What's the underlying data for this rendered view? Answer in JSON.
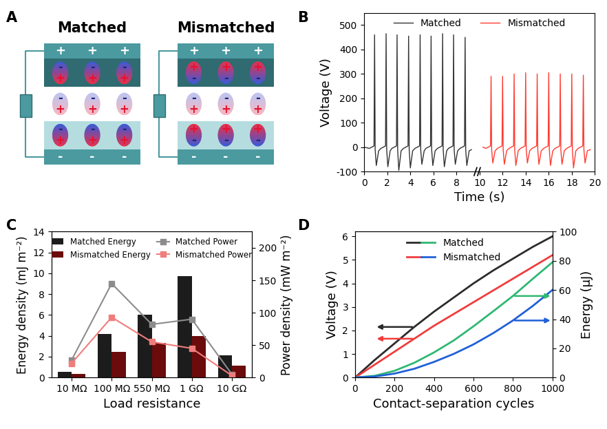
{
  "diagram": {
    "label": "A",
    "panels": [
      {
        "title": "Matched",
        "top_electrode": [
          "+",
          "+",
          "+"
        ],
        "top_layer": [
          [
            "-",
            "+"
          ],
          [
            "-",
            "+"
          ],
          [
            "-",
            "+"
          ]
        ],
        "gap": [
          [
            "-",
            "+"
          ],
          [
            "-",
            "+"
          ],
          [
            "-",
            "+"
          ]
        ],
        "bottom_layer": [
          [
            "-",
            "+"
          ],
          [
            "-",
            "+"
          ],
          [
            "-",
            "+"
          ]
        ],
        "bottom_electrode": [
          "-",
          "-",
          "-"
        ]
      },
      {
        "title": "Mismatched",
        "top_electrode": [
          "+",
          "+",
          "+"
        ],
        "top_layer": [
          [
            "+",
            "-"
          ],
          [
            "+",
            "-"
          ],
          [
            "+",
            "-"
          ]
        ],
        "gap": [
          [
            "-",
            "+"
          ],
          [
            "-",
            "+"
          ],
          [
            "-",
            "+"
          ]
        ],
        "bottom_layer": [
          [
            "+",
            "-"
          ],
          [
            "+",
            "-"
          ],
          [
            "+",
            "-"
          ]
        ],
        "bottom_electrode": [
          "-",
          "-",
          "-"
        ]
      }
    ]
  },
  "chart_data": [
    {
      "label": "B",
      "type": "line",
      "x_label": "Time (s)",
      "y_label": "Voltage (V)",
      "xlim": [
        0,
        20
      ],
      "xticks": [
        0,
        2,
        4,
        6,
        8,
        10,
        12,
        14,
        16,
        18,
        20
      ],
      "ylim": [
        -100,
        550
      ],
      "yticks": [
        -100,
        0,
        100,
        200,
        300,
        400,
        500
      ],
      "legend": "upper center",
      "series": [
        {
          "name": "Matched",
          "color": "#333333",
          "x": [
            0.0,
            0.45,
            0.85,
            0.9,
            0.95,
            1.05,
            1.25,
            1.45,
            1.85,
            1.9,
            1.95,
            2.05,
            2.25,
            2.4,
            2.8,
            2.85,
            2.9,
            3.0,
            3.2,
            3.4,
            3.8,
            3.85,
            3.9,
            4.0,
            4.2,
            4.4,
            4.8,
            4.85,
            4.9,
            5.0,
            5.2,
            5.35,
            5.75,
            5.8,
            5.85,
            5.95,
            6.15,
            6.35,
            6.75,
            6.8,
            6.85,
            6.95,
            7.15,
            7.3,
            7.7,
            7.75,
            7.8,
            7.9,
            8.1,
            8.3,
            8.7,
            8.75,
            8.8,
            8.9,
            9.1,
            9.3
          ],
          "values": [
            0,
            -5,
            5,
            460,
            -10,
            -75,
            -15,
            -5,
            5,
            465,
            -10,
            -80,
            -15,
            -5,
            5,
            460,
            -10,
            -95,
            -15,
            -5,
            5,
            455,
            -10,
            -85,
            -15,
            -5,
            5,
            460,
            -10,
            -70,
            -15,
            -5,
            5,
            455,
            -10,
            -75,
            -15,
            -5,
            5,
            465,
            -10,
            -80,
            -15,
            -5,
            5,
            460,
            -10,
            -70,
            -15,
            -5,
            5,
            450,
            -10,
            -75,
            -15,
            -10
          ]
        },
        {
          "name": "Mismatched",
          "color": "#ff3b30",
          "x": [
            10.3,
            10.55,
            10.95,
            11.0,
            11.05,
            11.15,
            11.35,
            11.55,
            11.95,
            12.0,
            12.05,
            12.15,
            12.35,
            12.55,
            12.95,
            13.0,
            13.05,
            13.15,
            13.35,
            13.55,
            13.95,
            14.0,
            14.05,
            14.15,
            14.35,
            14.55,
            14.95,
            15.0,
            15.05,
            15.15,
            15.35,
            15.55,
            15.95,
            16.0,
            16.05,
            16.15,
            16.35,
            16.55,
            16.95,
            17.0,
            17.05,
            17.15,
            17.35,
            17.55,
            17.95,
            18.0,
            18.05,
            18.15,
            18.35,
            18.55,
            18.95,
            19.0,
            19.05,
            19.15,
            19.35,
            19.6
          ],
          "values": [
            0,
            -5,
            5,
            290,
            -10,
            -65,
            -15,
            -5,
            5,
            290,
            -10,
            -70,
            -15,
            -5,
            5,
            300,
            -10,
            -75,
            -15,
            -5,
            5,
            305,
            -10,
            -65,
            -15,
            -5,
            5,
            300,
            -10,
            -70,
            -15,
            -5,
            5,
            305,
            -10,
            -75,
            -15,
            -5,
            5,
            300,
            -10,
            -70,
            -15,
            -5,
            5,
            300,
            -10,
            -85,
            -15,
            -5,
            5,
            295,
            -10,
            -65,
            -15,
            -10
          ]
        }
      ]
    },
    {
      "label": "C",
      "type": "bar",
      "x_label": "Load resistance",
      "y_label": "Energy density (mJ m⁻²)",
      "y2_label": "Power density (mW m⁻²)",
      "categories": [
        "10 MΩ",
        "100 MΩ",
        "550 MΩ",
        "1 GΩ",
        "10 GΩ"
      ],
      "ylim": [
        0,
        14
      ],
      "yticks": [
        0,
        2,
        4,
        6,
        8,
        10,
        12,
        14
      ],
      "y2lim": [
        0,
        225
      ],
      "y2ticks": [
        0,
        50,
        100,
        150,
        200
      ],
      "legend": "upper center",
      "series": [
        {
          "name": "Matched Energy",
          "type": "bar",
          "color": "#1c1c1c",
          "values": [
            0.55,
            4.15,
            6.05,
            9.7,
            2.1
          ]
        },
        {
          "name": "Mismatched Energy",
          "type": "bar",
          "color": "#6b0b0b",
          "values": [
            0.35,
            2.45,
            3.3,
            4.0,
            1.15
          ]
        },
        {
          "name": "Matched Power",
          "type": "line",
          "marker": "square",
          "axis": "y2",
          "color": "#8c8c8c",
          "values": [
            27,
            145,
            82,
            90,
            5
          ]
        },
        {
          "name": "Mismatched Power",
          "type": "line",
          "marker": "square",
          "axis": "y2",
          "color": "#f07c7c",
          "values": [
            22,
            93,
            55,
            45,
            3
          ]
        }
      ]
    },
    {
      "label": "D",
      "type": "line",
      "x_label": "Contact-separation cycles",
      "y_label": "Voltage (V)",
      "y2_label": "Energy (μJ)",
      "x": [
        0,
        100,
        200,
        300,
        400,
        500,
        600,
        700,
        800,
        900,
        1000
      ],
      "xlim": [
        0,
        1000
      ],
      "xticks": [
        0,
        200,
        400,
        600,
        800,
        1000
      ],
      "ylim": [
        0,
        6.2
      ],
      "yticks": [
        0,
        1,
        2,
        3,
        4,
        5,
        6
      ],
      "y2lim": [
        0,
        100
      ],
      "y2ticks": [
        0,
        20,
        40,
        60,
        80,
        100
      ],
      "legend": "upper center",
      "series": [
        {
          "name": "Matched",
          "color": "#2b2b2b",
          "values": [
            0,
            0.75,
            1.45,
            2.15,
            2.8,
            3.4,
            4.0,
            4.55,
            5.05,
            5.55,
            6.0
          ]
        },
        {
          "name": "Mismatched",
          "color": "#f03c3c",
          "values": [
            0,
            0.55,
            1.1,
            1.65,
            2.2,
            2.7,
            3.2,
            3.7,
            4.2,
            4.7,
            5.2
          ]
        },
        {
          "name": "Matched",
          "color": "#2eb872",
          "axis": "y2",
          "values": [
            0,
            1.2,
            4.6,
            10.1,
            17.2,
            25.4,
            35.1,
            45.4,
            55.9,
            67.6,
            79
          ]
        },
        {
          "name": "Mismatched",
          "color": "#2060d8",
          "axis": "y2",
          "values": [
            0,
            0.7,
            2.7,
            6.0,
            10.7,
            16.2,
            22.7,
            30.4,
            39.1,
            49.0,
            60
          ]
        }
      ]
    }
  ]
}
